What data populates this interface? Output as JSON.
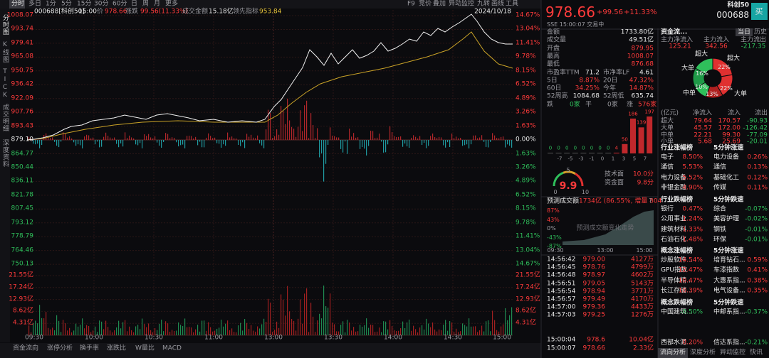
{
  "toolbar": {
    "tabs": [
      "分时",
      "多日",
      "1分",
      "5分",
      "15分",
      "30分",
      "60分",
      "日",
      "周",
      "月",
      "更多"
    ],
    "tools": [
      "F9",
      "竞价",
      "叠加",
      "异动监控",
      "九转",
      "画线",
      "工具"
    ]
  },
  "quote_bar": {
    "code": "000688[科创50]",
    "time": "15:00",
    "price_label": "价",
    "price": "978.66",
    "change_label": "涨跌",
    "change": "99.56(11.33%)",
    "amount_label": "成交金额",
    "amount": "15.18亿",
    "lead_label": "领先指标",
    "lead": "953.84",
    "date": "2024/10/18"
  },
  "side_tabs": [
    "分时图",
    "K线图",
    "TICK",
    "成交明细",
    "深度资料"
  ],
  "price_axis": {
    "left": [
      "1008.07",
      "993.74",
      "979.41",
      "965.08",
      "950.75",
      "936.42",
      "922.09",
      "907.76",
      "893.43",
      "879.10",
      "864.77",
      "850.44",
      "836.11",
      "821.78",
      "807.45",
      "793.12",
      "778.79",
      "764.46",
      "750.13"
    ],
    "right": [
      "14.67%",
      "13.04%",
      "11.41%",
      "9.78%",
      "8.15%",
      "6.52%",
      "4.89%",
      "3.26%",
      "1.63%",
      "0.00%",
      "1.63%",
      "3.26%",
      "4.89%",
      "6.52%",
      "8.15%",
      "9.78%",
      "11.41%",
      "13.04%",
      "14.67%"
    ]
  },
  "volume_axis": [
    "21.55亿",
    "17.24亿",
    "12.93亿",
    "8.62亿",
    "4.31亿"
  ],
  "time_axis": [
    "09:30",
    "10:00",
    "10:30",
    "11:00",
    "13:00",
    "13:30",
    "14:00",
    "14:30",
    "15:00"
  ],
  "bottom_tabs": [
    "资金流向",
    "涨停分析",
    "换手率",
    "涨跌比",
    "W量比",
    "MACD"
  ],
  "panel": {
    "price": "978.66",
    "change": "+99.56",
    "change_pct": "+11.33%",
    "name": "科创50",
    "code": "000688",
    "buy": "买",
    "status": "SSE  15:00:07  交易中",
    "stats": [
      [
        "金额",
        "1733.80亿"
      ],
      [
        "成交量",
        "49.51亿"
      ],
      [
        "开盘",
        "879.95"
      ],
      [
        "最高",
        "1008.07"
      ],
      [
        "最低",
        "876.68"
      ]
    ],
    "pairs": [
      [
        "市盈率TTM",
        "71.2",
        "市净率LF",
        "4.61"
      ],
      [
        "5日",
        "8.87%",
        "20日",
        "47.32%"
      ],
      [
        "60日",
        "34.25%",
        "今年",
        "14.87%"
      ],
      [
        "52周高",
        "1084.68",
        "52周低",
        "635.74"
      ]
    ],
    "breadth": [
      "跌",
      "0家",
      "平",
      "0家",
      "涨",
      "576家"
    ],
    "flow": {
      "title": "资金流...",
      "tabs": [
        "当日",
        "历史"
      ],
      "heads": [
        "主力净流入",
        "主力流入",
        "主力流出"
      ],
      "values": [
        "125.21",
        "342.56",
        "-217.35"
      ],
      "donut_labels": [
        "超大",
        "超大",
        "大单",
        "中单",
        "大单"
      ],
      "donut_pcts": [
        "22%",
        "16%",
        "10%",
        "13%",
        "22%"
      ],
      "table_head": [
        "(亿元)",
        "净流入",
        "流入",
        "流出"
      ],
      "table": [
        [
          "超大",
          "79.64",
          "170.57",
          "-90.93"
        ],
        [
          "大单",
          "45.57",
          "172.00",
          "-126.42"
        ],
        [
          "中单",
          "22.21",
          "99.30",
          "-77.09"
        ],
        [
          "小单",
          "5.68",
          "25.69",
          "-20.01"
        ]
      ]
    },
    "distribution": {
      "values": [
        0,
        0,
        0,
        0,
        0,
        0,
        0,
        0,
        4,
        50,
        186,
        139,
        197
      ],
      "axis": [
        "-7",
        "-5",
        "-3",
        "-1",
        "0",
        "1",
        "3",
        "5",
        "7"
      ]
    },
    "gauge": {
      "score": "9.9",
      "ticks": [
        "0",
        "5",
        "10"
      ],
      "items": [
        [
          "技术面",
          "10.0分"
        ],
        [
          "资金面",
          "9.8分"
        ]
      ]
    },
    "forecast": {
      "label": "预测成交额",
      "value": "1734亿 (86.55%, 增量 804",
      "help": "?",
      "yticks": [
        "87%",
        "43%",
        "0%",
        "-43%",
        "-87%"
      ],
      "watermark": "预测成交额变化走势",
      "times": [
        "09:30",
        "13:00",
        "15:00"
      ]
    },
    "trades": [
      [
        "14:56:42",
        "979.00",
        "4127万"
      ],
      [
        "14:56:45",
        "978.76",
        "4799万"
      ],
      [
        "14:56:48",
        "978.97",
        "4602万"
      ],
      [
        "14:56:51",
        "979.05",
        "5143万"
      ],
      [
        "14:56:54",
        "978.94",
        "3771万"
      ],
      [
        "14:56:57",
        "979.49",
        "4170万"
      ],
      [
        "14:57:00",
        "979.36",
        "4433万"
      ],
      [
        "14:57:03",
        "979.25",
        "1276万"
      ]
    ],
    "trades_end": [
      [
        "15:00:04",
        "978.6",
        "10.04亿"
      ],
      [
        "15:00:07",
        "978.66",
        "2.33亿"
      ]
    ],
    "boards": [
      {
        "title": "行业涨幅榜",
        "speed": "5分钟涨速",
        "rows": [
          [
            "电子",
            "8.50%",
            "电力设备",
            "0.26%"
          ],
          [
            "通信",
            "5.53%",
            "通信",
            "0.13%"
          ],
          [
            "电力设备",
            "5.52%",
            "基础化工",
            "0.12%"
          ],
          [
            "非银金融",
            "4.90%",
            "传媒",
            "0.11%"
          ]
        ]
      },
      {
        "title": "行业跌幅榜",
        "speed": "5分钟跌速",
        "rows": [
          [
            "银行",
            "0.47%",
            "综合",
            "-0.07%"
          ],
          [
            "公用事业",
            "1.24%",
            "美容护理",
            "-0.02%"
          ],
          [
            "建筑材料",
            "1.33%",
            "钢铁",
            "-0.01%"
          ],
          [
            "石油石化",
            "1.48%",
            "环保",
            "-0.01%"
          ]
        ]
      },
      {
        "title": "概念涨幅榜",
        "speed": "5分钟涨速",
        "rows": [
          [
            "炒股软件...",
            "14.54%",
            "培育钻石...",
            "0.59%"
          ],
          [
            "GPU指数",
            "12.47%",
            "车漆指数",
            "0.41%"
          ],
          [
            "半导体精...",
            "10.47%",
            "大惠系指...",
            "0.38%"
          ],
          [
            "长江存储...",
            "10.39%",
            "电气设备...",
            "0.35%"
          ]
        ]
      },
      {
        "title": "概念跌幅榜",
        "speed": "5分钟跌速",
        "rows": [
          [
            "中国建筑...",
            "-0.50%",
            "中邮系指...",
            "-0.37%"
          ],
          [
            "西部水泥...",
            "0.20%",
            "信达系指...",
            "-0.21%"
          ]
        ]
      }
    ],
    "panel_tabs": [
      "流向分析",
      "深度分析",
      "异动监控",
      "快讯"
    ]
  }
}
